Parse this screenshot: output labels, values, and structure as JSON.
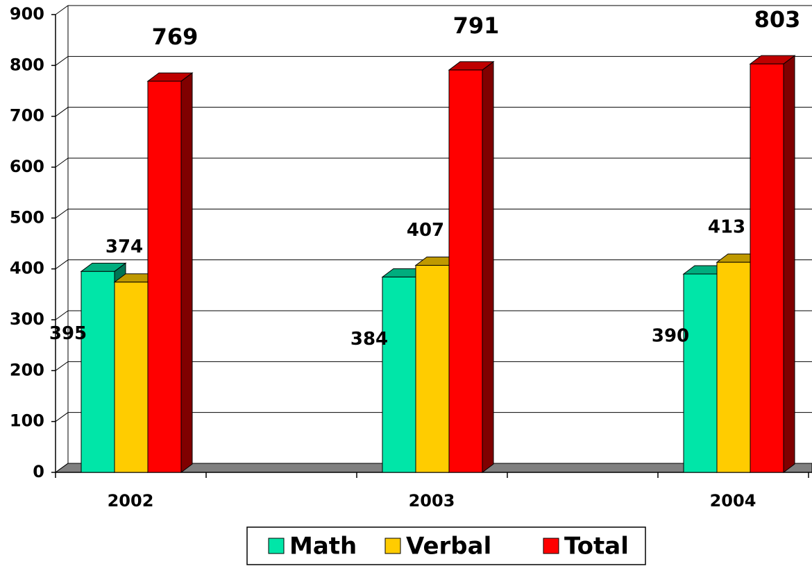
{
  "chart_data": {
    "type": "bar3d",
    "categories": [
      "2002",
      "2003",
      "2004"
    ],
    "series": [
      {
        "name": "Math",
        "color": "#00e6a8",
        "values": [
          395,
          384,
          390
        ]
      },
      {
        "name": "Verbal",
        "color": "#ffcc00",
        "values": [
          374,
          407,
          413
        ]
      },
      {
        "name": "Total",
        "color": "#ff0000",
        "values": [
          769,
          791,
          803
        ]
      }
    ],
    "ylim": [
      0,
      900
    ],
    "yticks": [
      0,
      100,
      200,
      300,
      400,
      500,
      600,
      700,
      800,
      900
    ],
    "grid": true,
    "legend": "bottom"
  }
}
